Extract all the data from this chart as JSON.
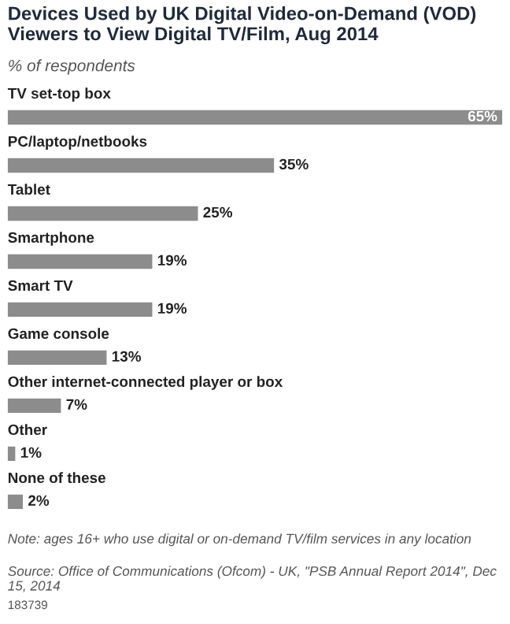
{
  "chart_data": {
    "type": "bar",
    "orientation": "horizontal",
    "title": "Devices Used by UK Digital Video-on-Demand (VOD) Viewers to View Digital TV/Film, Aug 2014",
    "subtitle": "% of respondents",
    "categories": [
      "TV set-top box",
      "PC/laptop/netbooks",
      "Tablet",
      "Smartphone",
      "Smart TV",
      "Game console",
      "Other internet-connected player or box",
      "Other",
      "None of these"
    ],
    "values": [
      65,
      35,
      25,
      19,
      19,
      13,
      7,
      1,
      2
    ],
    "value_labels": [
      "65%",
      "35%",
      "25%",
      "19%",
      "19%",
      "13%",
      "7%",
      "1%",
      "2%"
    ],
    "color": "#8c8c8c",
    "annotations": [
      "Note: ages 16+ who use digital or on-demand TV/film services in any location",
      "Source: Office of Communications (Ofcom) - UK, \"PSB Annual Report 2014\", Dec 15, 2014",
      "183739"
    ]
  }
}
